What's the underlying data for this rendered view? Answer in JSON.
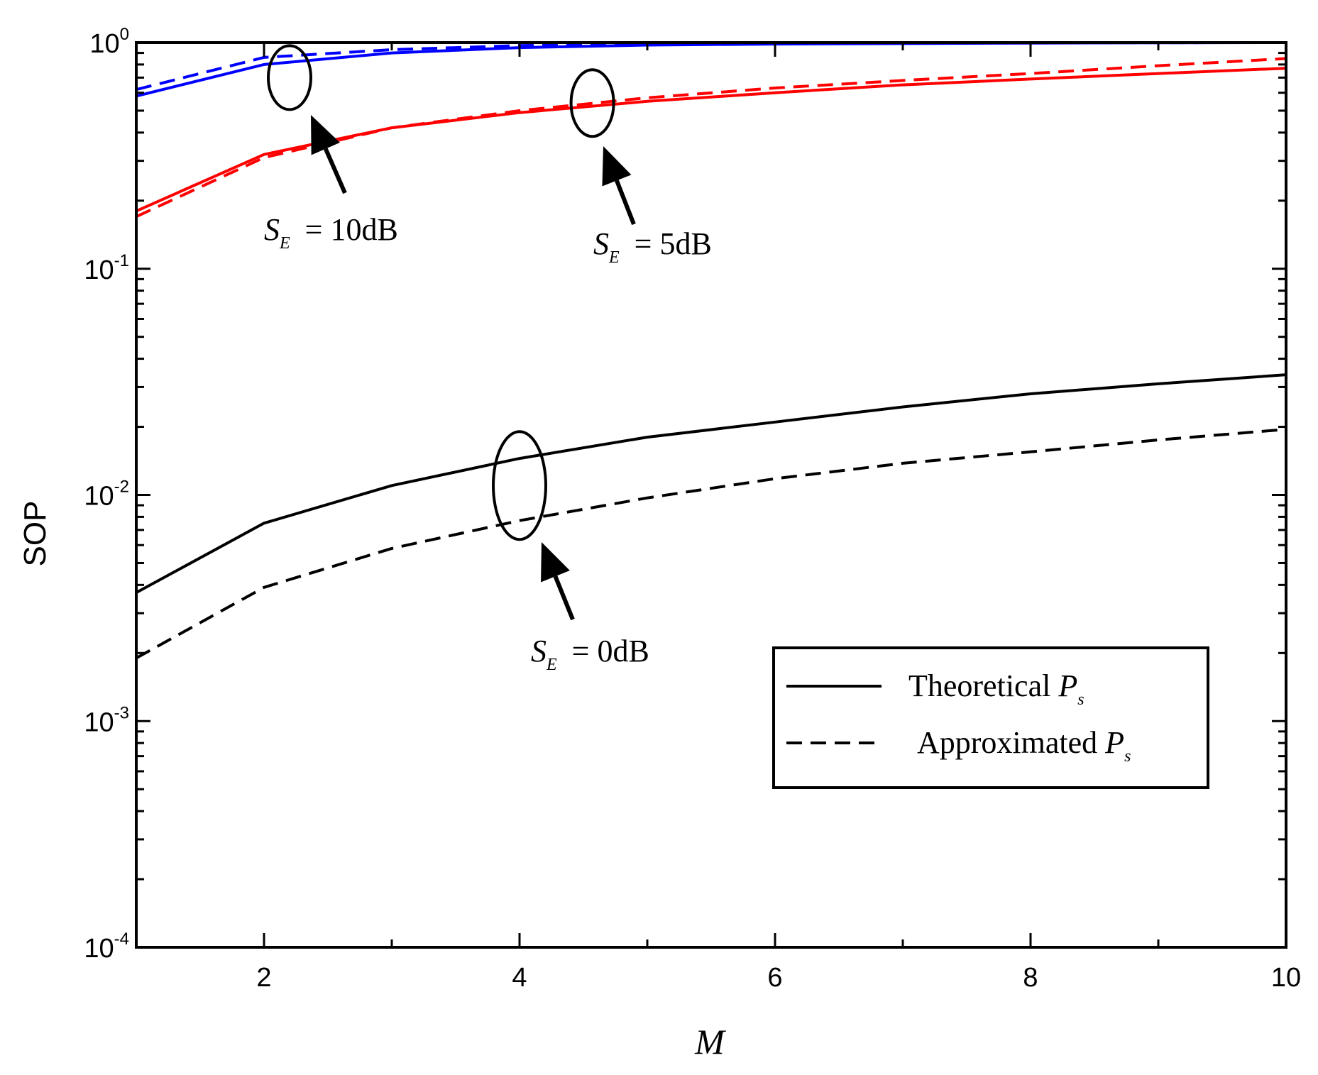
{
  "chart_data": {
    "type": "line",
    "title": "",
    "xlabel": "M",
    "ylabel": "SOP",
    "xlim": [
      1,
      10
    ],
    "ylim": [
      0.0001,
      1
    ],
    "yscale": "log",
    "x": [
      1,
      2,
      3,
      4,
      5,
      6,
      7,
      8,
      9,
      10
    ],
    "x_ticks": [
      {
        "value": 2,
        "label": "2"
      },
      {
        "value": 4,
        "label": "4"
      },
      {
        "value": 6,
        "label": "6"
      },
      {
        "value": 8,
        "label": "8"
      },
      {
        "value": 10,
        "label": "10"
      }
    ],
    "y_ticks": [
      {
        "value": 1,
        "base": "10",
        "exp": "0"
      },
      {
        "value": 0.1,
        "base": "10",
        "exp": "-1"
      },
      {
        "value": 0.01,
        "base": "10",
        "exp": "-2"
      },
      {
        "value": 0.001,
        "base": "10",
        "exp": "-3"
      },
      {
        "value": 0.0001,
        "base": "10",
        "exp": "-4"
      }
    ],
    "series": [
      {
        "name": "Theoretical Ps, SE = 10dB",
        "color": "#0000ff",
        "style": "solid",
        "values": [
          0.58,
          0.8,
          0.9,
          0.95,
          0.975,
          0.985,
          0.99,
          0.995,
          0.998,
          1.0
        ]
      },
      {
        "name": "Approximated Ps, SE = 10dB",
        "color": "#0000ff",
        "style": "dashed",
        "values": [
          0.62,
          0.86,
          0.93,
          0.97,
          0.985,
          0.992,
          0.996,
          0.998,
          0.999,
          1.0
        ]
      },
      {
        "name": "Theoretical Ps, SE = 5dB",
        "color": "#ff0000",
        "style": "solid",
        "values": [
          0.18,
          0.32,
          0.42,
          0.49,
          0.55,
          0.6,
          0.65,
          0.69,
          0.73,
          0.77
        ]
      },
      {
        "name": "Approximated Ps, SE = 5dB",
        "color": "#ff0000",
        "style": "dashed",
        "values": [
          0.17,
          0.31,
          0.42,
          0.5,
          0.57,
          0.63,
          0.68,
          0.73,
          0.79,
          0.85
        ]
      },
      {
        "name": "Theoretical Ps, SE = 0dB",
        "color": "#000000",
        "style": "solid",
        "values": [
          0.0037,
          0.0075,
          0.011,
          0.0145,
          0.018,
          0.021,
          0.0245,
          0.028,
          0.031,
          0.034
        ]
      },
      {
        "name": "Approximated Ps, SE = 0dB",
        "color": "#000000",
        "style": "dashed",
        "values": [
          0.0019,
          0.0039,
          0.0058,
          0.0077,
          0.0097,
          0.0118,
          0.0138,
          0.0155,
          0.0175,
          0.0195
        ]
      }
    ],
    "annotations": [
      {
        "id": "se10",
        "var": "S",
        "sub": "E",
        "text": " = 10dB",
        "target": {
          "x": 2.2,
          "y": 0.7
        }
      },
      {
        "id": "se5",
        "var": "S",
        "sub": "E",
        "text": " = 5dB",
        "target": {
          "x": 4.57,
          "y": 0.54
        }
      },
      {
        "id": "se0",
        "var": "S",
        "sub": "E",
        "text": " = 0dB",
        "target": {
          "x": 4.0,
          "y": 0.011
        }
      }
    ],
    "legend": {
      "position": "bottom-right",
      "entries": [
        {
          "label": "Theoretical ",
          "var": "P",
          "sub": "s",
          "style": "solid"
        },
        {
          "label": "Approximated ",
          "var": "P",
          "sub": "s",
          "style": "dashed"
        }
      ]
    }
  }
}
